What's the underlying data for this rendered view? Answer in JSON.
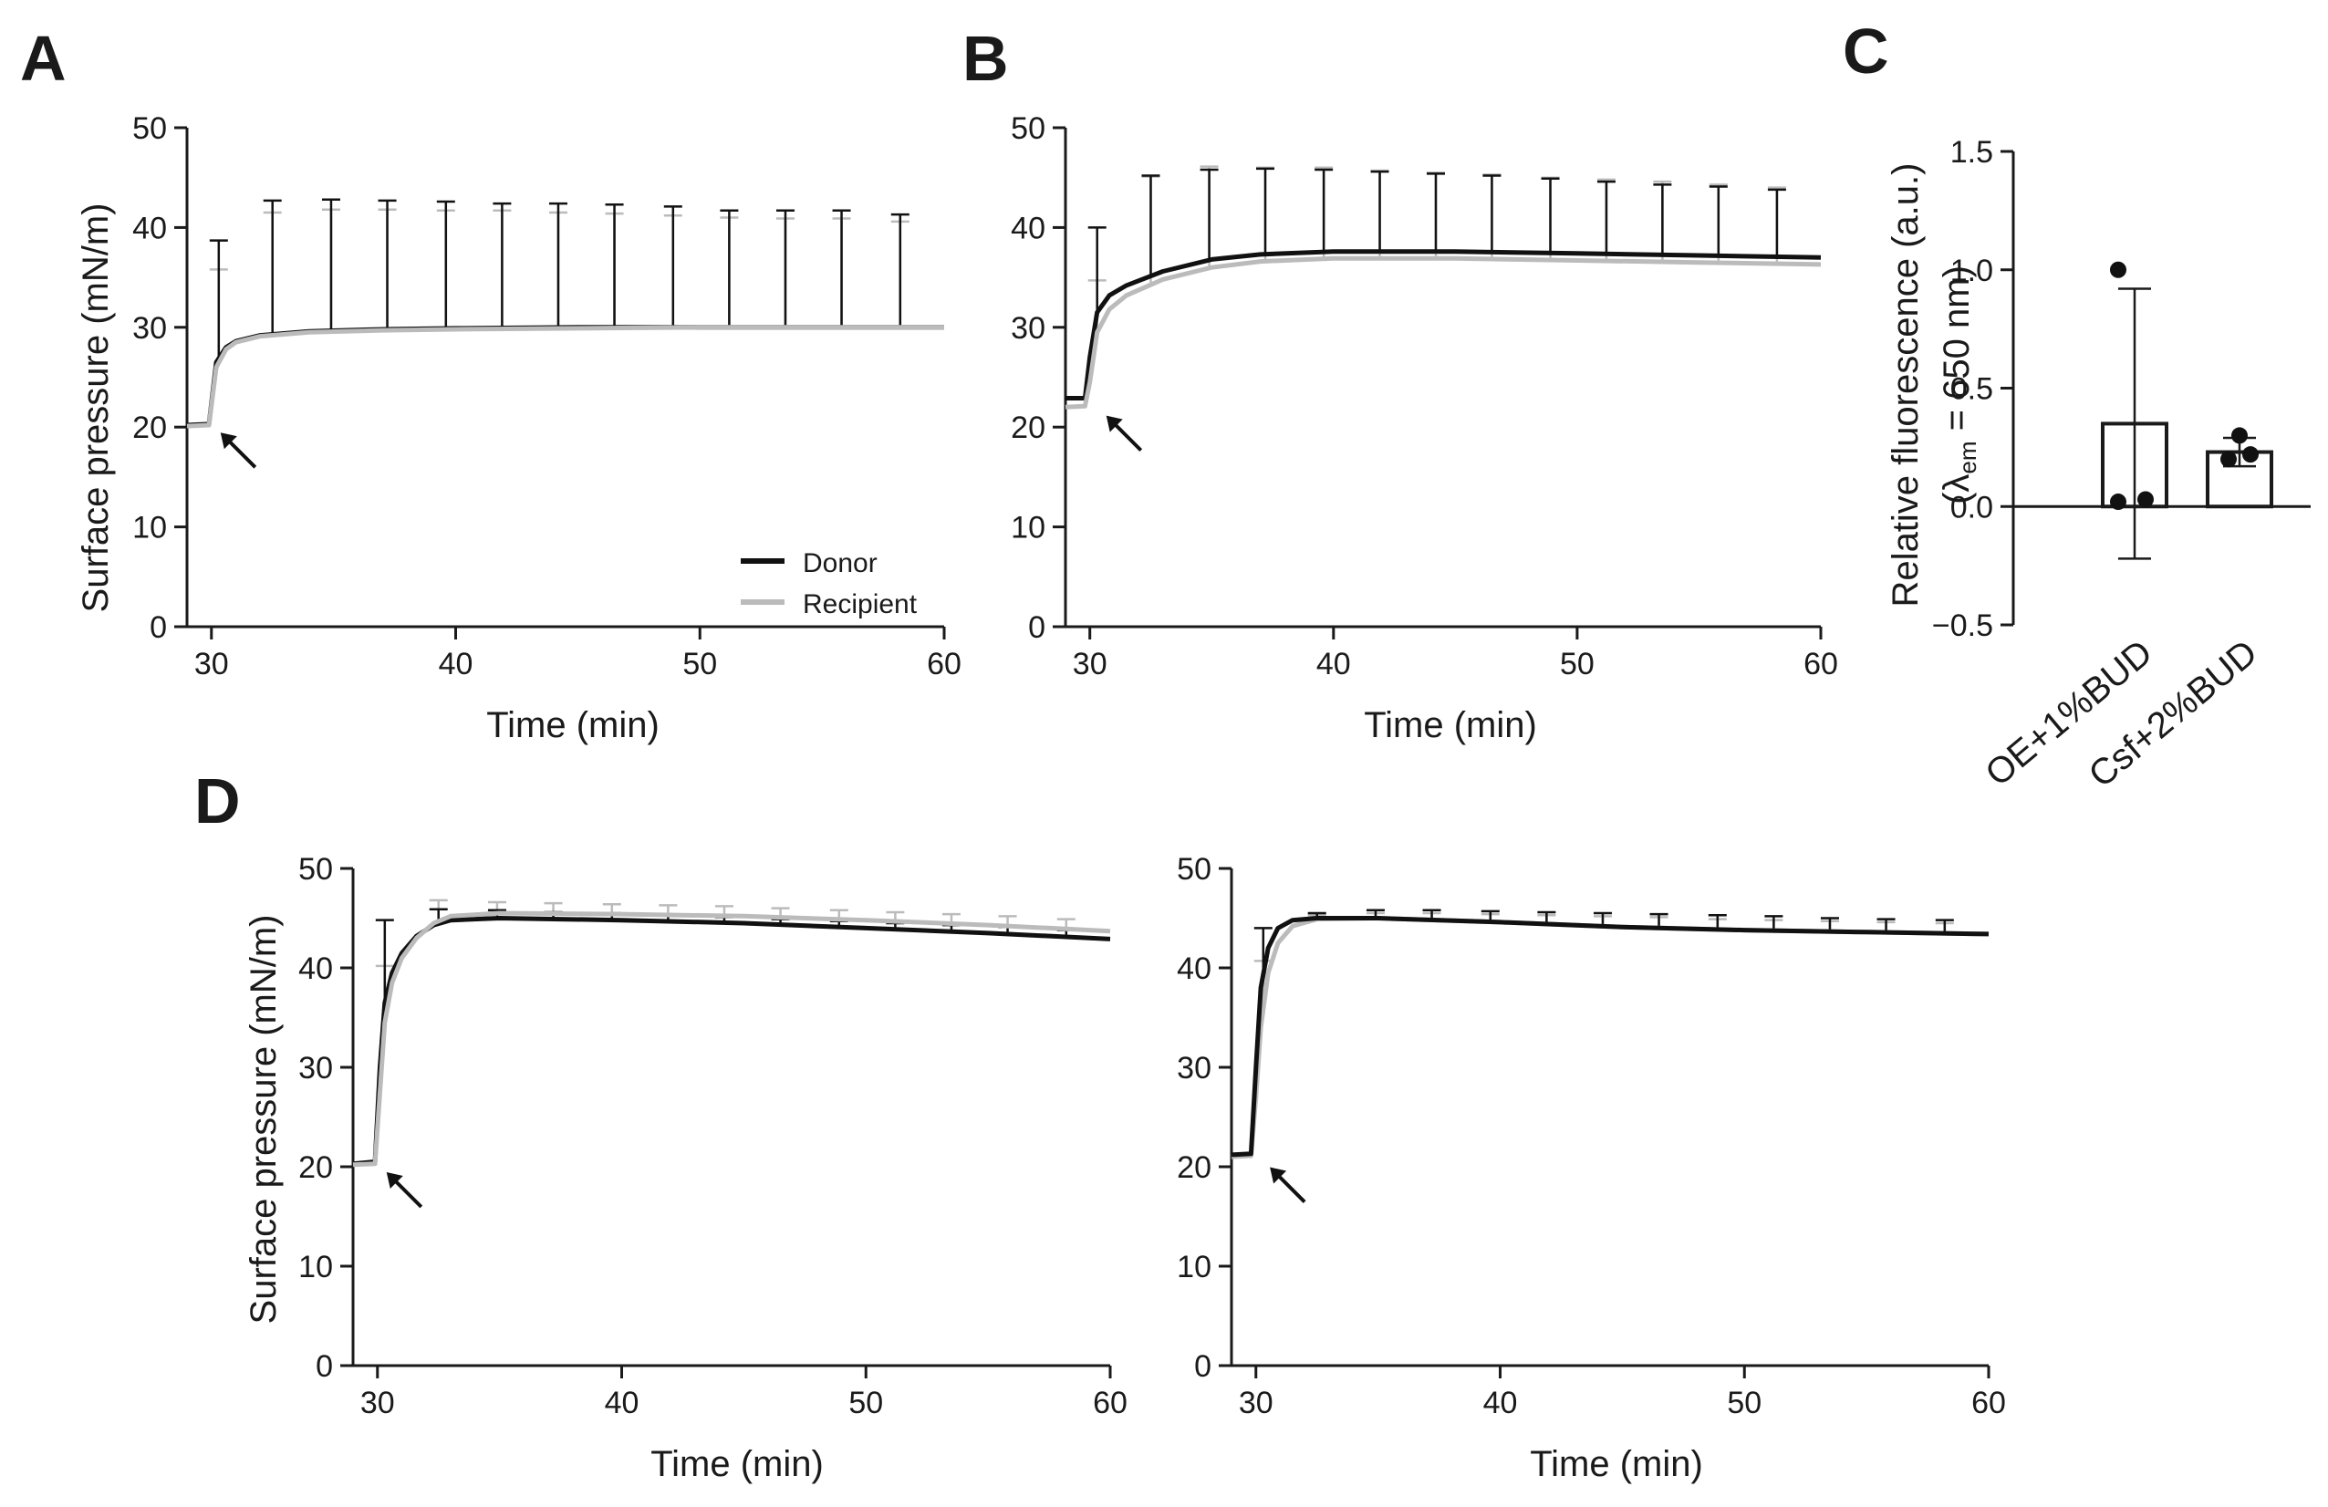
{
  "chart_data": [
    {
      "panel": "A",
      "type": "line",
      "xlabel": "Time (min)",
      "ylabel": "Surface pressure (mN/m)",
      "xlim": [
        29,
        60
      ],
      "ylim": [
        0,
        50
      ],
      "xticks": [
        30,
        40,
        50,
        60
      ],
      "yticks": [
        0,
        10,
        20,
        30,
        40,
        50
      ],
      "legend": {
        "position": "bottom-right",
        "entries": [
          "Donor",
          "Recipient"
        ]
      },
      "arrow_at": [
        30,
        20
      ],
      "series": [
        {
          "name": "Donor",
          "color": "#111111",
          "x": [
            29,
            29.9,
            30.2,
            30.6,
            31,
            32,
            34,
            37,
            40,
            45,
            50,
            55,
            60
          ],
          "y": [
            20.2,
            20.3,
            26.5,
            28.0,
            28.6,
            29.2,
            29.6,
            29.8,
            29.9,
            30.0,
            30.0,
            30.0,
            30.0
          ],
          "err_x": [
            30.3,
            32.5,
            34.9,
            37.2,
            39.6,
            41.9,
            44.2,
            46.5,
            48.9,
            51.2,
            53.5,
            55.8,
            58.2
          ],
          "err_y": [
            38.7,
            42.7,
            42.8,
            42.7,
            42.6,
            42.4,
            42.4,
            42.3,
            42.1,
            41.7,
            41.7,
            41.7,
            41.3
          ]
        },
        {
          "name": "Recipient",
          "color": "#bbbbbb",
          "x": [
            29,
            29.9,
            30.2,
            30.6,
            31,
            32,
            34,
            37,
            40,
            45,
            50,
            55,
            60
          ],
          "y": [
            20.1,
            20.2,
            26.0,
            27.8,
            28.5,
            29.1,
            29.5,
            29.7,
            29.8,
            29.9,
            30.0,
            30.0,
            30.0
          ],
          "err_x": [
            30.3,
            32.5,
            34.9,
            37.2,
            39.6,
            41.9,
            44.2,
            46.5,
            48.9,
            51.2,
            53.5,
            55.8,
            58.2
          ],
          "err_y": [
            35.8,
            41.5,
            41.8,
            41.8,
            41.7,
            41.7,
            41.5,
            41.4,
            41.2,
            41.0,
            40.9,
            40.9,
            40.6
          ]
        }
      ]
    },
    {
      "panel": "B",
      "type": "line",
      "xlabel": "Time (min)",
      "ylabel": "",
      "xlim": [
        29,
        60
      ],
      "ylim": [
        0,
        50
      ],
      "xticks": [
        30,
        40,
        50,
        60
      ],
      "yticks": [
        0,
        10,
        20,
        30,
        40,
        50
      ],
      "arrow_at": [
        30.3,
        21.7
      ],
      "series": [
        {
          "name": "Donor",
          "color": "#111111",
          "x": [
            29,
            29.8,
            30.0,
            30.3,
            30.8,
            31.5,
            33,
            35,
            37,
            40,
            45,
            50,
            55,
            60
          ],
          "y": [
            22.9,
            22.9,
            27.0,
            31.5,
            33.2,
            34.2,
            35.6,
            36.8,
            37.3,
            37.6,
            37.6,
            37.4,
            37.2,
            37.0
          ],
          "err_x": [
            30.3,
            32.5,
            34.9,
            37.2,
            39.6,
            41.9,
            44.2,
            46.5,
            48.9,
            51.2,
            53.5,
            55.8,
            58.2
          ],
          "err_y": [
            40.0,
            45.2,
            45.8,
            45.9,
            45.8,
            45.6,
            45.4,
            45.2,
            44.9,
            44.6,
            44.3,
            44.1,
            43.8
          ]
        },
        {
          "name": "Recipient",
          "color": "#bbbbbb",
          "x": [
            29,
            29.8,
            30.0,
            30.3,
            30.8,
            31.5,
            33,
            35,
            37,
            40,
            45,
            50,
            55,
            60
          ],
          "y": [
            22.0,
            22.1,
            24.5,
            29.5,
            31.8,
            33.2,
            34.8,
            36.0,
            36.6,
            36.9,
            36.9,
            36.7,
            36.5,
            36.3
          ],
          "err_x": [
            30.3,
            32.5,
            34.9,
            37.2,
            39.6,
            41.9,
            44.2,
            46.5,
            48.9,
            51.2,
            53.5,
            55.8,
            58.2
          ],
          "err_y": [
            34.7,
            45.1,
            46.1,
            46.0,
            46.0,
            45.7,
            45.5,
            45.3,
            45.0,
            44.8,
            44.6,
            44.3,
            44.0
          ]
        }
      ]
    },
    {
      "panel": "C",
      "type": "bar",
      "ylabel_line1": "Relative fluorescence (a.u.)",
      "ylabel_line2": "(λ",
      "ylabel_sub": "em",
      "ylabel_line2_rest": " = 650 nm)",
      "ylim": [
        -0.5,
        1.5
      ],
      "yticks": [
        "−0.5",
        "0.0",
        "0.5",
        "1.0",
        "1.5"
      ],
      "ytick_values": [
        -0.5,
        0.0,
        0.5,
        1.0,
        1.5
      ],
      "categories": [
        "OE+1%BUD",
        "Csf+2%BUD"
      ],
      "values": [
        0.35,
        0.23
      ],
      "errors": [
        0.57,
        0.06
      ],
      "points": [
        [
          1.0,
          0.02,
          0.03
        ],
        [
          0.3,
          0.2,
          0.22
        ]
      ]
    },
    {
      "panel": "D-left",
      "type": "line",
      "xlabel": "Time (min)",
      "ylabel": "Surface pressure (mN/m)",
      "xlim": [
        29,
        60
      ],
      "ylim": [
        0,
        50
      ],
      "xticks": [
        30,
        40,
        50,
        60
      ],
      "yticks": [
        0,
        10,
        20,
        30,
        40,
        50
      ],
      "arrow_at": [
        30,
        20
      ],
      "series": [
        {
          "name": "Donor",
          "color": "#111111",
          "x": [
            29,
            29.9,
            30.1,
            30.3,
            30.6,
            31,
            31.6,
            32.3,
            33,
            35,
            40,
            45,
            50,
            55,
            60
          ],
          "y": [
            20.3,
            20.5,
            30.0,
            36.5,
            39.5,
            41.5,
            43.2,
            44.3,
            44.8,
            45.0,
            44.8,
            44.5,
            44.0,
            43.5,
            42.9
          ],
          "err_x": [
            30.3,
            32.5,
            34.9,
            37.2,
            39.6,
            41.9,
            44.2,
            46.5,
            48.9,
            51.2,
            53.5,
            55.8,
            58.2
          ],
          "err_y": [
            44.8,
            45.9,
            45.8,
            45.6,
            45.5,
            45.3,
            45.1,
            44.9,
            44.7,
            44.5,
            44.3,
            44.1,
            43.8
          ]
        },
        {
          "name": "Recipient",
          "color": "#bbbbbb",
          "x": [
            29,
            29.9,
            30.1,
            30.3,
            30.6,
            31,
            31.6,
            32.3,
            33,
            35,
            40,
            45,
            50,
            55,
            60
          ],
          "y": [
            20.2,
            20.3,
            27.5,
            34.5,
            38.5,
            41.0,
            43.0,
            44.5,
            45.2,
            45.5,
            45.4,
            45.2,
            44.8,
            44.3,
            43.7
          ],
          "err_x": [
            30.3,
            32.5,
            34.9,
            37.2,
            39.6,
            41.9,
            44.2,
            46.5,
            48.9,
            51.2,
            53.5,
            55.8,
            58.2
          ],
          "err_y": [
            40.2,
            46.8,
            46.6,
            46.5,
            46.4,
            46.3,
            46.2,
            46.0,
            45.8,
            45.6,
            45.4,
            45.2,
            44.9
          ]
        }
      ]
    },
    {
      "panel": "D-right",
      "type": "line",
      "xlabel": "Time (min)",
      "ylabel": "",
      "xlim": [
        29,
        60
      ],
      "ylim": [
        0,
        50
      ],
      "xticks": [
        30,
        40,
        50,
        60
      ],
      "yticks": [
        0,
        10,
        20,
        30,
        40,
        50
      ],
      "arrow_at": [
        30.2,
        20.5
      ],
      "series": [
        {
          "name": "Recipient",
          "color": "#bbbbbb",
          "x": [
            29,
            29.8,
            30.0,
            30.2,
            30.5,
            30.9,
            31.5,
            32.5,
            35,
            40,
            45,
            50,
            55,
            60
          ],
          "y": [
            21.0,
            21.1,
            27.0,
            34.0,
            39.5,
            42.5,
            44.2,
            44.9,
            45.0,
            44.6,
            44.1,
            43.8,
            43.6,
            43.4
          ],
          "err_x": [
            30.3,
            32.5,
            34.9,
            37.2,
            39.6,
            41.9,
            44.2,
            46.5,
            48.9,
            51.2,
            53.5,
            55.8,
            58.2
          ],
          "err_y": [
            40.7,
            45.3,
            45.5,
            45.5,
            45.4,
            45.3,
            45.2,
            45.1,
            44.9,
            44.8,
            44.7,
            44.6,
            44.5
          ]
        },
        {
          "name": "Donor",
          "color": "#111111",
          "x": [
            29,
            29.8,
            30.0,
            30.2,
            30.5,
            30.9,
            31.5,
            32.5,
            35,
            40,
            45,
            50,
            55,
            60
          ],
          "y": [
            21.2,
            21.3,
            30.0,
            38.0,
            42.0,
            44.0,
            44.8,
            45.0,
            45.0,
            44.6,
            44.1,
            43.8,
            43.6,
            43.4
          ],
          "err_x": [
            30.3,
            32.5,
            34.9,
            37.2,
            39.6,
            41.9,
            44.2,
            46.5,
            48.9,
            51.2,
            53.5,
            55.8,
            58.2
          ],
          "err_y": [
            44.0,
            45.5,
            45.8,
            45.8,
            45.7,
            45.6,
            45.5,
            45.4,
            45.3,
            45.2,
            45.0,
            44.9,
            44.8
          ]
        }
      ]
    }
  ],
  "panel_labels": {
    "a": "A",
    "b": "B",
    "c": "C",
    "d": "D"
  },
  "legend": {
    "donor": "Donor",
    "recipient": "Recipient"
  },
  "colors": {
    "donor": "#111111",
    "recipient": "#bbbbbb",
    "axis": "#1a1a1a"
  }
}
